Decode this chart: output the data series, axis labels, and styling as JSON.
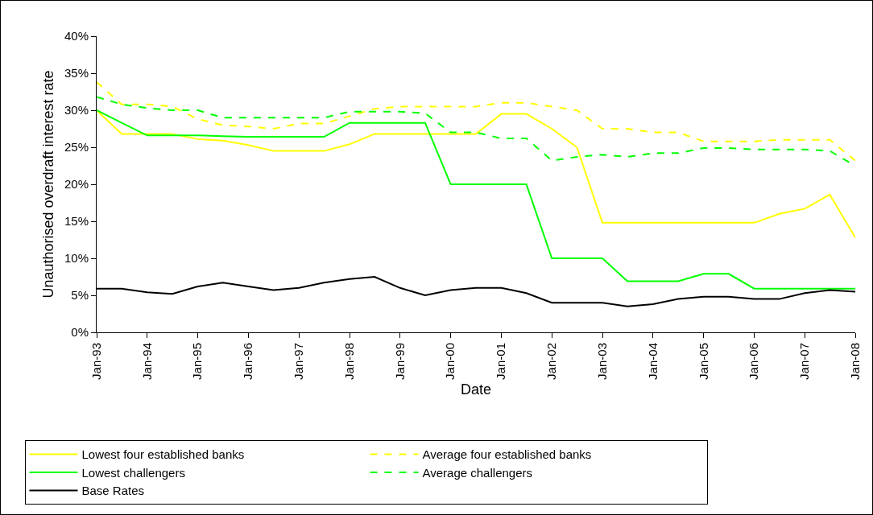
{
  "chart_data": {
    "type": "line",
    "xlabel": "Date",
    "ylabel": "Unauthorised overdraft interest rate",
    "x": [
      "1993-01",
      "1993-07",
      "1994-01",
      "1994-07",
      "1995-01",
      "1995-07",
      "1996-01",
      "1996-07",
      "1997-01",
      "1997-07",
      "1998-01",
      "1998-07",
      "1999-01",
      "1999-07",
      "2000-01",
      "2000-07",
      "2001-01",
      "2001-07",
      "2002-01",
      "2002-07",
      "2003-01",
      "2003-07",
      "2004-01",
      "2004-07",
      "2005-01",
      "2005-07",
      "2006-01",
      "2006-07",
      "2007-01",
      "2007-07",
      "2008-01"
    ],
    "series": [
      {
        "name": "Lowest four established banks",
        "color": "#ffff00",
        "line_style": "solid",
        "values": [
          30,
          26.8,
          26.8,
          26.8,
          26.1,
          25.9,
          25.3,
          24.5,
          24.5,
          24.5,
          25.4,
          26.8,
          26.8,
          26.8,
          26.8,
          26.8,
          29.5,
          29.5,
          27.5,
          25,
          14.8,
          14.8,
          14.8,
          14.8,
          14.8,
          14.8,
          14.8,
          16,
          16.7,
          18.6,
          12.8
        ]
      },
      {
        "name": "Average four established banks",
        "color": "#ffff00",
        "line_style": "dashed",
        "values": [
          33.8,
          30.8,
          30.8,
          30.5,
          28.8,
          28,
          27.8,
          27.5,
          28.2,
          28.2,
          29.2,
          30.2,
          30.5,
          30.5,
          30.5,
          30.5,
          31,
          31,
          30.5,
          30,
          27.5,
          27.5,
          27,
          27,
          25.8,
          25.8,
          25.8,
          26,
          26,
          26,
          23.2
        ]
      },
      {
        "name": "Lowest challengers",
        "color": "#00ff00",
        "line_style": "solid",
        "values": [
          30,
          28.3,
          26.6,
          26.6,
          26.6,
          26.5,
          26.4,
          26.4,
          26.4,
          26.4,
          28.3,
          28.3,
          28.3,
          28.3,
          20,
          20,
          20,
          20,
          10,
          10,
          10,
          6.9,
          6.9,
          6.9,
          7.9,
          7.9,
          5.9,
          5.9,
          5.9,
          5.9,
          5.9
        ]
      },
      {
        "name": "Average challengers",
        "color": "#00ff00",
        "line_style": "dashed",
        "values": [
          31.8,
          30.8,
          30.3,
          30,
          30,
          29,
          29,
          29,
          29,
          29,
          29.8,
          29.8,
          29.8,
          29.6,
          27,
          27,
          26.2,
          26.2,
          23.2,
          23.7,
          24,
          23.7,
          24.2,
          24.2,
          24.9,
          24.9,
          24.7,
          24.7,
          24.7,
          24.5,
          22.5
        ]
      },
      {
        "name": "Base Rates",
        "color": "#000000",
        "line_style": "solid",
        "values": [
          5.9,
          5.9,
          5.4,
          5.2,
          6.2,
          6.7,
          6.2,
          5.7,
          6,
          6.7,
          7.2,
          7.5,
          6,
          5,
          5.7,
          6,
          6,
          5.3,
          4,
          4,
          4,
          3.5,
          3.8,
          4.5,
          4.8,
          4.8,
          4.5,
          4.5,
          5.3,
          5.7,
          5.5
        ]
      }
    ],
    "xlim": [
      "1993-01",
      "2008-01"
    ],
    "xticks": [
      {
        "value": "1993-01",
        "label": "Jan-93"
      },
      {
        "value": "1994-01",
        "label": "Jan-94"
      },
      {
        "value": "1995-01",
        "label": "Jan-95"
      },
      {
        "value": "1996-01",
        "label": "Jan-96"
      },
      {
        "value": "1997-01",
        "label": "Jan-97"
      },
      {
        "value": "1998-01",
        "label": "Jan-98"
      },
      {
        "value": "1999-01",
        "label": "Jan-99"
      },
      {
        "value": "2000-01",
        "label": "Jan-00"
      },
      {
        "value": "2001-01",
        "label": "Jan-01"
      },
      {
        "value": "2002-01",
        "label": "Jan-02"
      },
      {
        "value": "2003-01",
        "label": "Jan-03"
      },
      {
        "value": "2004-01",
        "label": "Jan-04"
      },
      {
        "value": "2005-01",
        "label": "Jan-05"
      },
      {
        "value": "2006-01",
        "label": "Jan-06"
      },
      {
        "value": "2007-01",
        "label": "Jan-07"
      },
      {
        "value": "2008-01",
        "label": "Jan-08"
      }
    ],
    "ylim": [
      0,
      40
    ],
    "yticks": [
      {
        "value": 0,
        "label": "0%"
      },
      {
        "value": 5,
        "label": "5%"
      },
      {
        "value": 10,
        "label": "10%"
      },
      {
        "value": 15,
        "label": "15%"
      },
      {
        "value": 20,
        "label": "20%"
      },
      {
        "value": 25,
        "label": "25%"
      },
      {
        "value": 30,
        "label": "30%"
      },
      {
        "value": 35,
        "label": "35%"
      },
      {
        "value": 40,
        "label": "40%"
      }
    ],
    "grid": false,
    "legend": "bottom",
    "marker": "none"
  }
}
